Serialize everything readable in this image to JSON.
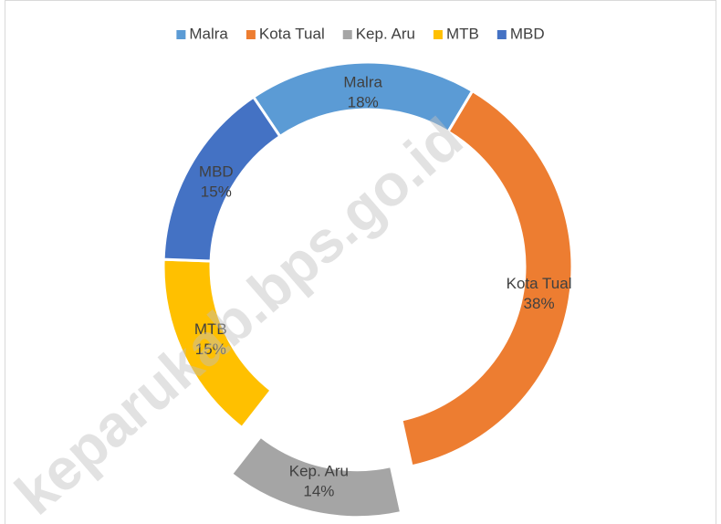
{
  "chart_data": {
    "type": "donut",
    "categories": [
      "Malra",
      "Kota Tual",
      "Kep. Aru",
      "MTB",
      "MBD"
    ],
    "values": [
      18,
      38,
      14,
      15,
      15
    ],
    "value_labels": [
      "18%",
      "38%",
      "14%",
      "15%",
      "15%"
    ],
    "colors": [
      "#5b9bd5",
      "#ed7d31",
      "#a5a5a5",
      "#ffc000",
      "#4472c4"
    ],
    "legend": "top",
    "watermark": "keparukab.bps.go.id"
  }
}
